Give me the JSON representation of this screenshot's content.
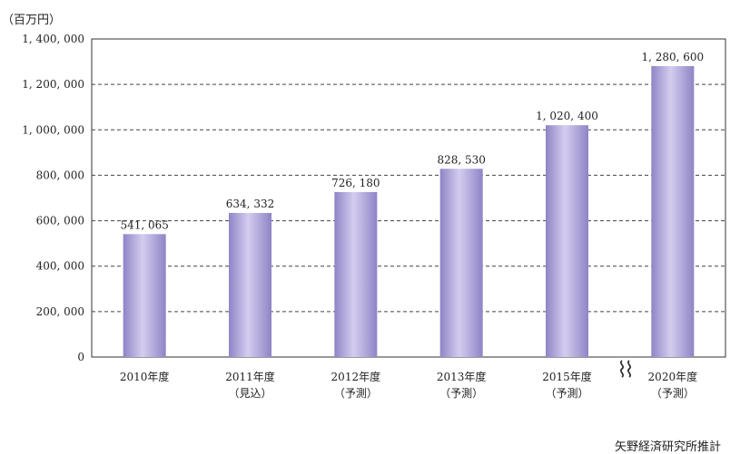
{
  "chart_data": {
    "type": "bar",
    "unit_label": "（百万円）",
    "categories": [
      [
        "2010年度"
      ],
      [
        "2011年度",
        "（見込）"
      ],
      [
        "2012年度",
        "（予測）"
      ],
      [
        "2013年度",
        "（予測）"
      ],
      [
        "2015年度",
        "（予測）"
      ],
      [
        "2020年度",
        "（予測）"
      ]
    ],
    "values": [
      541065,
      634332,
      726180,
      828530,
      1020400,
      1280600
    ],
    "value_labels": [
      "541, 065",
      "634, 332",
      "726, 180",
      "828, 530",
      "1, 020, 400",
      "1, 280, 600"
    ],
    "ylim": [
      0,
      1400000
    ],
    "yticks": [
      0,
      200000,
      400000,
      600000,
      800000,
      1000000,
      1200000,
      1400000
    ],
    "ytick_labels": [
      "0",
      "200, 000",
      "400, 000",
      "600, 000",
      "800, 000",
      "1, 000, 000",
      "1, 200, 000",
      "1, 400, 000"
    ],
    "grid": "dashed horizontal",
    "axis_break": "between 2015年度 and 2020年度",
    "bar_color_light": "#d4cdef",
    "bar_color_dark": "#8f84c6"
  },
  "source_note": "矢野経済研究所推計"
}
